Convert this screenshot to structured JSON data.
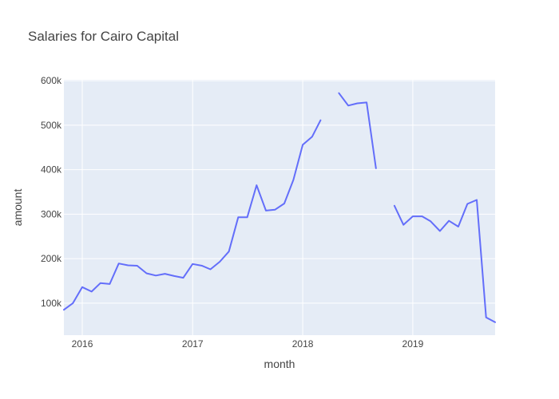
{
  "chart_data": {
    "type": "line",
    "title": "Salaries for Cairo Capital",
    "xlabel": "month",
    "ylabel": "amount",
    "x_tick_labels": [
      "2016",
      "2017",
      "2018",
      "2019"
    ],
    "x_tick_dates": [
      "2016-01-01",
      "2017-01-01",
      "2018-01-01",
      "2019-01-01"
    ],
    "xlim": [
      "2015-11-01",
      "2019-10-01"
    ],
    "y_ticks": [
      100000,
      200000,
      300000,
      400000,
      500000,
      600000
    ],
    "y_tick_labels": [
      "100k",
      "200k",
      "300k",
      "400k",
      "500k",
      "600k"
    ],
    "ylim": [
      28000,
      602000
    ],
    "grid": true,
    "line_color": "#636efa",
    "plot_bg": "#e5ecf6",
    "series": [
      {
        "x": [
          "2015-11-01",
          "2015-12-01",
          "2016-01-01",
          "2016-02-01",
          "2016-03-01",
          "2016-04-01",
          "2016-05-01",
          "2016-06-01",
          "2016-07-01",
          "2016-08-01",
          "2016-09-01",
          "2016-10-01",
          "2016-11-01",
          "2016-12-01",
          "2017-01-01",
          "2017-02-01",
          "2017-03-01",
          "2017-04-01",
          "2017-05-01",
          "2017-06-01",
          "2017-07-01",
          "2017-08-01",
          "2017-09-01",
          "2017-10-01",
          "2017-11-01",
          "2017-12-01",
          "2018-01-01",
          "2018-02-01",
          "2018-03-01",
          "2018-04-01",
          "2018-05-01",
          "2018-06-01",
          "2018-07-01",
          "2018-08-01",
          "2018-09-01",
          "2018-10-01",
          "2018-11-01",
          "2018-12-01",
          "2019-01-01",
          "2019-02-01",
          "2019-03-01",
          "2019-04-01",
          "2019-05-01",
          "2019-06-01",
          "2019-07-01",
          "2019-08-01",
          "2019-09-01",
          "2019-10-01"
        ],
        "y": [
          85000,
          100000,
          136000,
          126000,
          145000,
          143000,
          189000,
          185000,
          184000,
          167000,
          162000,
          166000,
          161000,
          157000,
          188000,
          184000,
          176000,
          193000,
          216000,
          293000,
          293000,
          365000,
          308000,
          310000,
          324000,
          377000,
          456000,
          474000,
          511000,
          null,
          572000,
          544000,
          549000,
          551000,
          403000,
          null,
          319000,
          276000,
          295000,
          295000,
          284000,
          262000,
          285000,
          272000,
          323000,
          332000,
          68000,
          57000
        ]
      }
    ]
  }
}
